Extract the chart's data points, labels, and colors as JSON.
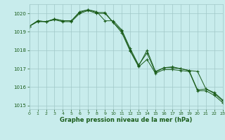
{
  "title": "Graphe pression niveau de la mer (hPa)",
  "bg_color": "#c8ecec",
  "grid_color": "#a0c8c8",
  "line_color": "#1a5c1a",
  "xlim": [
    0,
    23
  ],
  "ylim": [
    1014.8,
    1020.5
  ],
  "yticks": [
    1015,
    1016,
    1017,
    1018,
    1019,
    1020
  ],
  "xticks": [
    0,
    1,
    2,
    3,
    4,
    5,
    6,
    7,
    8,
    9,
    10,
    11,
    12,
    13,
    14,
    15,
    16,
    17,
    18,
    19,
    20,
    21,
    22,
    23
  ],
  "series1_x": [
    0,
    1,
    2,
    3,
    4,
    5,
    6,
    7,
    8,
    9,
    10,
    11,
    12,
    13,
    14,
    15,
    16,
    17,
    18,
    19,
    20,
    21,
    22,
    23
  ],
  "series1_y": [
    1019.3,
    1019.6,
    1019.55,
    1019.7,
    1019.6,
    1019.6,
    1020.1,
    1020.2,
    1020.1,
    1019.6,
    1019.6,
    1019.1,
    1018.1,
    1017.2,
    1017.85,
    1016.8,
    1017.05,
    1017.1,
    1017.0,
    1016.9,
    1016.85,
    1015.9,
    1015.7,
    1015.3
  ],
  "series2_x": [
    0,
    1,
    2,
    3,
    4,
    5,
    6,
    7,
    8,
    9,
    10,
    11,
    12,
    13,
    14,
    15,
    16,
    17,
    18,
    19,
    20,
    21,
    22,
    23
  ],
  "series2_y": [
    1019.3,
    1019.6,
    1019.55,
    1019.7,
    1019.6,
    1019.6,
    1020.05,
    1020.2,
    1020.05,
    1020.05,
    1019.5,
    1019.05,
    1018.0,
    1017.15,
    1018.0,
    1016.85,
    1017.05,
    1017.05,
    1017.0,
    1016.9,
    1015.85,
    1015.9,
    1015.65,
    1015.25
  ],
  "series3_x": [
    0,
    1,
    2,
    3,
    4,
    5,
    6,
    7,
    8,
    9,
    10,
    11,
    12,
    13,
    14,
    15,
    16,
    17,
    18,
    19,
    20,
    21,
    22,
    23
  ],
  "series3_y": [
    1019.3,
    1019.55,
    1019.55,
    1019.65,
    1019.55,
    1019.55,
    1020.0,
    1020.15,
    1020.0,
    1020.0,
    1019.5,
    1018.95,
    1017.95,
    1017.1,
    1017.5,
    1016.75,
    1016.95,
    1016.95,
    1016.9,
    1016.85,
    1015.8,
    1015.8,
    1015.55,
    1015.15
  ]
}
